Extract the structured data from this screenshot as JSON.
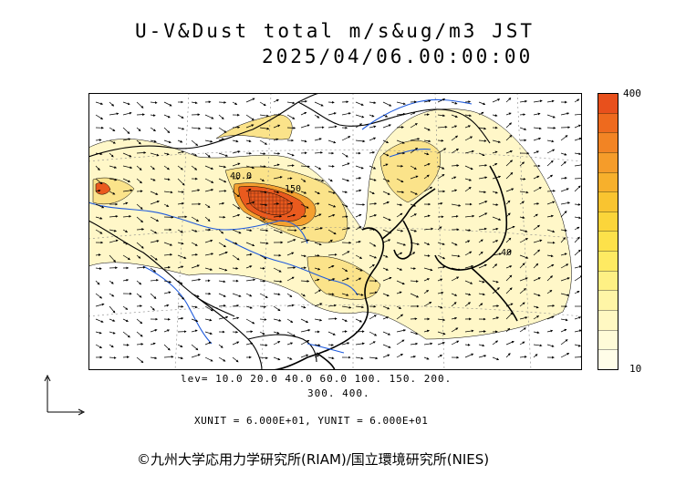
{
  "title": {
    "line1": "U-V&Dust total m/s&ug/m3 JST",
    "line2": "2025/04/06.00:00:00"
  },
  "colorbar": {
    "max_label": "400",
    "min_label": "10",
    "colors": [
      "#e8501c",
      "#ee6a1e",
      "#f28424",
      "#f59c2a",
      "#f7b02c",
      "#f9c430",
      "#fbd53a",
      "#fde14a",
      "#feea62",
      "#fef084",
      "#fff5a6",
      "#fff8c2",
      "#fffbd8",
      "#fffde8"
    ]
  },
  "levels": {
    "line1": "lev= 10.0 20.0 40.0 60.0 100. 150. 200.",
    "line2": "300. 400."
  },
  "units": "XUNIT = 6.000E+01, YUNIT = 6.000E+01",
  "contour_labels": [
    "40.0",
    "150",
    "40"
  ],
  "copyright": "©九州大学応用力学研究所(RIAM)/国立環境研究所(NIES)",
  "map_colors": {
    "coast": "#000000",
    "river": "#1e5adc",
    "dust_low": "#fff7c8",
    "dust_mid": "#f7d96a",
    "dust_high": "#ea5a1e"
  }
}
